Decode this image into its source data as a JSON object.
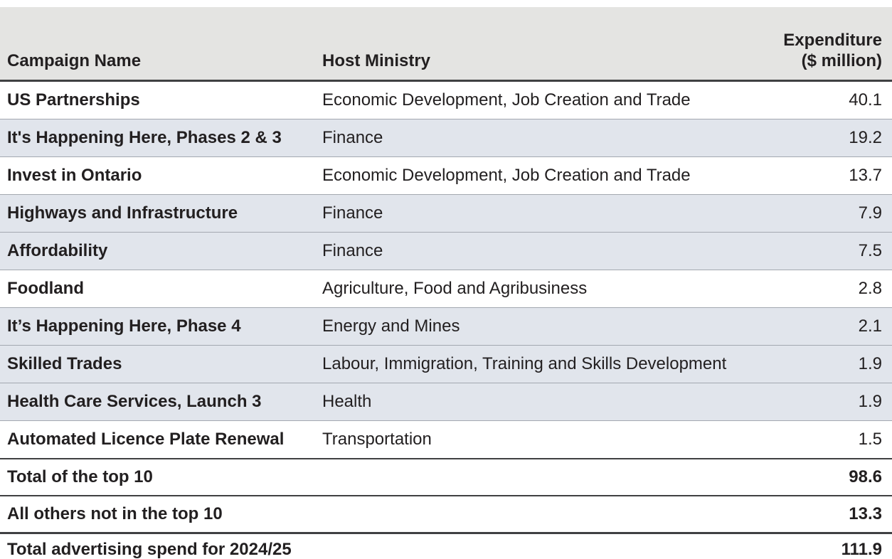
{
  "table": {
    "columns": {
      "campaign": {
        "label": "Campaign Name"
      },
      "ministry": {
        "label": "Host Ministry"
      },
      "expenditure": {
        "label_line1": "Expenditure",
        "label_line2": "($ million)"
      }
    },
    "rows": [
      {
        "campaign": "US Partnerships",
        "ministry": "Economic Development, Job Creation and Trade",
        "expenditure": "40.1",
        "shaded": false
      },
      {
        "campaign": "It's Happening Here, Phases 2 & 3",
        "ministry": "Finance",
        "expenditure": "19.2",
        "shaded": true
      },
      {
        "campaign": "Invest in Ontario",
        "ministry": "Economic Development, Job Creation and Trade",
        "expenditure": "13.7",
        "shaded": false
      },
      {
        "campaign": "Highways and Infrastructure",
        "ministry": "Finance",
        "expenditure": "7.9",
        "shaded": true
      },
      {
        "campaign": "Affordability",
        "ministry": "Finance",
        "expenditure": "7.5",
        "shaded": true
      },
      {
        "campaign": "Foodland",
        "ministry": "Agriculture, Food and Agribusiness",
        "expenditure": "2.8",
        "shaded": false
      },
      {
        "campaign": "It’s Happening Here, Phase 4",
        "ministry": "Energy and Mines",
        "expenditure": "2.1",
        "shaded": true
      },
      {
        "campaign": "Skilled Trades",
        "ministry": "Labour, Immigration, Training and Skills Development",
        "expenditure": "1.9",
        "shaded": true
      },
      {
        "campaign": "Health Care Services, Launch 3",
        "ministry": "Health",
        "expenditure": "1.9",
        "shaded": true
      },
      {
        "campaign": "Automated Licence Plate Renewal",
        "ministry": "Transportation",
        "expenditure": "1.5",
        "shaded": false
      }
    ],
    "summary_rows": [
      {
        "label": "Total of the top 10",
        "expenditure": "98.6",
        "strong_rule": false
      },
      {
        "label": "All others not in the top 10",
        "expenditure": "13.3",
        "strong_rule": false
      },
      {
        "label": "Total advertising spend for 2024/25",
        "expenditure": "111.9",
        "strong_rule": true
      }
    ]
  },
  "colors": {
    "header_bg": "#e4e4e2",
    "row_shade_bg": "#e1e5ec",
    "rule_light": "#a3a8b0",
    "rule_dark": "#3f4042",
    "text_color": "#221f20"
  }
}
